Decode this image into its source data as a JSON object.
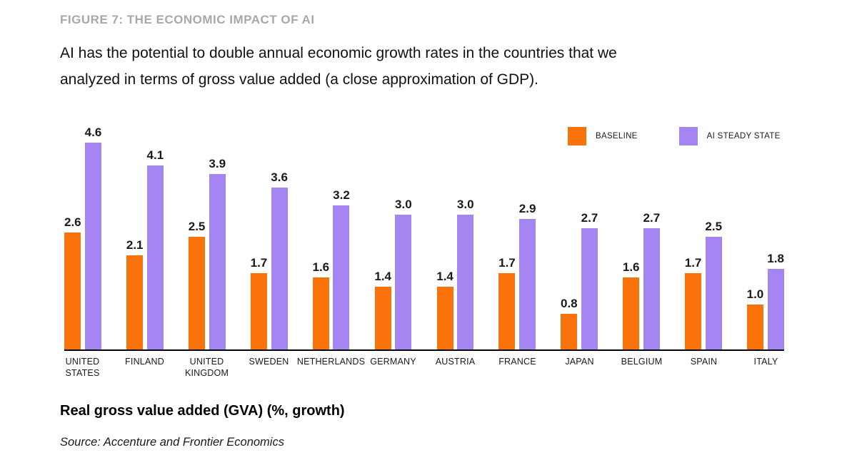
{
  "figure": {
    "label": "FIGURE 7: THE ECONOMIC IMPACT OF AI",
    "description_line1": "AI has the potential to double annual economic growth rates in the countries that we",
    "description_line2": "analyzed in terms of gross value added (a close approximation of GDP).",
    "footer_title": "Real gross value added (GVA) (%, growth)",
    "source": "Source: Accenture and Frontier Economics"
  },
  "colors": {
    "baseline": "#F9730A",
    "ai_steady_state": "#A585F2",
    "axis": "#000000",
    "figure_label_gray": "#A8A8A8"
  },
  "chart_data": {
    "type": "bar",
    "title": "FIGURE 7: THE ECONOMIC IMPACT OF AI",
    "subtitle": "AI has the potential to double annual economic growth rates in the countries that we analyzed in terms of gross value added (a close approximation of GDP).",
    "categories": [
      "UNITED\nSTATES",
      "FINLAND",
      "UNITED\nKINGDOM",
      "SWEDEN",
      "NETHERLANDS",
      "GERMANY",
      "AUSTRIA",
      "FRANCE",
      "JAPAN",
      "BELGIUM",
      "SPAIN",
      "ITALY"
    ],
    "series": [
      {
        "name": "BASELINE",
        "color": "#F9730A",
        "values": [
          2.6,
          2.1,
          2.5,
          1.7,
          1.6,
          1.4,
          1.4,
          1.7,
          0.8,
          1.6,
          1.7,
          1.0
        ]
      },
      {
        "name": "AI STEADY STATE",
        "color": "#A585F2",
        "values": [
          4.6,
          4.1,
          3.9,
          3.6,
          3.2,
          3.0,
          3.0,
          2.9,
          2.7,
          2.7,
          2.5,
          1.8
        ]
      }
    ],
    "xlabel": "",
    "ylabel": "Real gross value added (GVA) (%, growth)",
    "ylim": [
      0,
      5.0
    ],
    "grid": false,
    "legend_position": "top-right",
    "value_labels": true,
    "value_label_decimals": 1
  }
}
